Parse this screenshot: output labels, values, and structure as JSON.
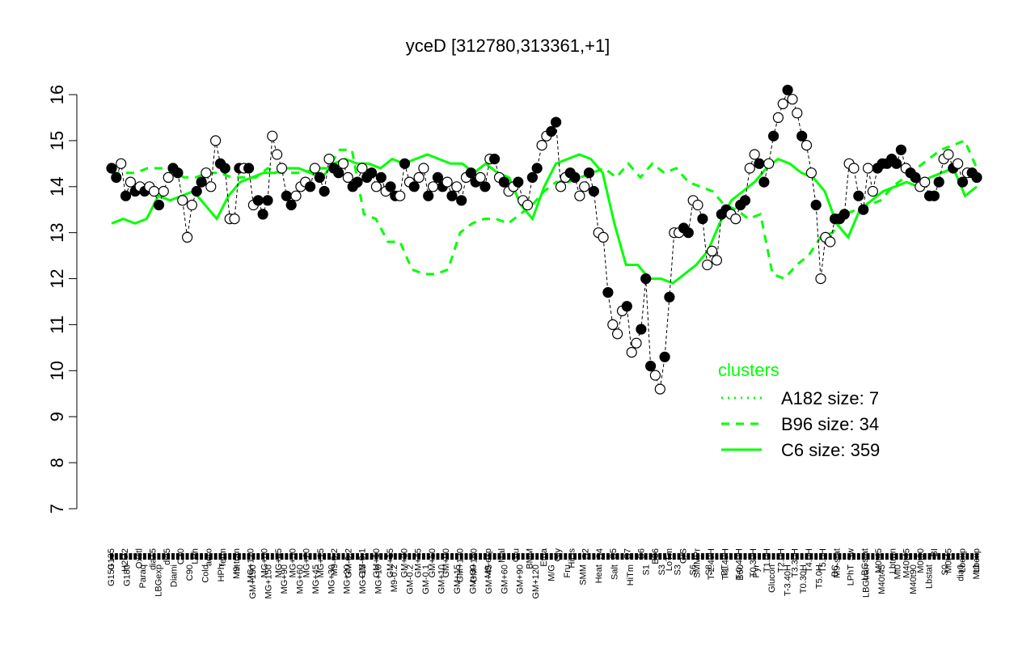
{
  "chart_data": {
    "type": "line",
    "title": "yceD [312780,313361,+1]",
    "xlabel": "",
    "ylabel": "",
    "ylim": [
      7,
      16
    ],
    "yticks": [
      7,
      8,
      9,
      10,
      11,
      12,
      13,
      14,
      15,
      16
    ],
    "xtick_labels_top": [
      "G135",
      "H2O2",
      "Oxctl",
      "dia15",
      "dia5",
      "C30",
      "LPh",
      "aero",
      "ferm",
      "M9-tran",
      "MG+120",
      "MG+60",
      "MG+45",
      "MG+30",
      "MG+20",
      "MG+15",
      "M9-0.2",
      "GM-0.2",
      "GM-0.1",
      "GM+10",
      "GM+15",
      "GM+30",
      "GM+45",
      "GM+60",
      "GM+90",
      "GM+120",
      "GM+150",
      "M9-exp",
      "Mal",
      "Glu",
      "BMM",
      "Etha",
      "Gly",
      "HiOs",
      "S2",
      "S4",
      "S5",
      "S7",
      "S6",
      "B36",
      "LoTm",
      "G/S",
      "SMMPr",
      "T-2.40H",
      "T-1.40H",
      "T-0.40H",
      "T0.30H",
      "T1.0H",
      "T2.0H",
      "T3.30H",
      "T4.0H",
      "T5.0H",
      "M9-stat",
      "Sw",
      "LBGstat",
      "M0t45",
      "Lbtran",
      "M40t45",
      "M0t90",
      "BI",
      "M0t45",
      "Lbexp",
      "Lbexp"
    ],
    "xtick_labels_bottom": [
      "G150",
      "G180",
      "Paraq",
      "LBGexp",
      "Diami",
      "C90",
      "Cold",
      "HPh",
      "nit",
      "GM+150",
      "MG+150",
      "MG+90",
      "MG+60",
      "MG+45",
      "MG+30",
      "MG+20",
      "MG+15",
      "MG+10",
      "M9-0.2",
      "GM-0.2",
      "GM-0.1",
      "GM+10",
      "GM+15",
      "GM+30",
      "GM+45",
      "GM+60",
      "GM+90",
      "GM+120",
      "M/G",
      "Fru",
      "SMM",
      "Heat",
      "Salt",
      "HiTm",
      "S1",
      "S3",
      "S3",
      "S6",
      "S8",
      "BT",
      "B60",
      "Pyr",
      "Glucon",
      "T-3.40H",
      "T0.30H",
      "T5.0H",
      "BC",
      "LPhT",
      "LBGtran",
      "M40t45",
      "Mt0",
      "M40t90",
      "Lbstat",
      "S0",
      "dia0",
      "Mt0"
    ],
    "points": [
      {
        "x": 1,
        "y": 14.4,
        "c": "f"
      },
      {
        "x": 2,
        "y": 14.2,
        "c": "f"
      },
      {
        "x": 3,
        "y": 14.5,
        "c": "o"
      },
      {
        "x": 4,
        "y": 13.8,
        "c": "f"
      },
      {
        "x": 5,
        "y": 14.1,
        "c": "o"
      },
      {
        "x": 6,
        "y": 13.9,
        "c": "f"
      },
      {
        "x": 7,
        "y": 14.0,
        "c": "o"
      },
      {
        "x": 8,
        "y": 13.9,
        "c": "f"
      },
      {
        "x": 9,
        "y": 14.0,
        "c": "o"
      },
      {
        "x": 10,
        "y": 13.9,
        "c": "o"
      },
      {
        "x": 11,
        "y": 13.6,
        "c": "f"
      },
      {
        "x": 12,
        "y": 13.9,
        "c": "o"
      },
      {
        "x": 13,
        "y": 14.2,
        "c": "o"
      },
      {
        "x": 14,
        "y": 14.4,
        "c": "f"
      },
      {
        "x": 15,
        "y": 14.3,
        "c": "f"
      },
      {
        "x": 16,
        "y": 13.7,
        "c": "o"
      },
      {
        "x": 17,
        "y": 12.9,
        "c": "o"
      },
      {
        "x": 18,
        "y": 13.6,
        "c": "o"
      },
      {
        "x": 19,
        "y": 13.9,
        "c": "f"
      },
      {
        "x": 20,
        "y": 14.1,
        "c": "f"
      },
      {
        "x": 21,
        "y": 14.3,
        "c": "o"
      },
      {
        "x": 22,
        "y": 14.0,
        "c": "o"
      },
      {
        "x": 23,
        "y": 15.0,
        "c": "o"
      },
      {
        "x": 24,
        "y": 14.5,
        "c": "f"
      },
      {
        "x": 25,
        "y": 14.4,
        "c": "f"
      },
      {
        "x": 26,
        "y": 13.3,
        "c": "o"
      },
      {
        "x": 27,
        "y": 13.3,
        "c": "o"
      },
      {
        "x": 28,
        "y": 14.4,
        "c": "f"
      },
      {
        "x": 29,
        "y": 14.4,
        "c": "o"
      },
      {
        "x": 30,
        "y": 14.4,
        "c": "f"
      },
      {
        "x": 31,
        "y": 13.6,
        "c": "o"
      },
      {
        "x": 32,
        "y": 13.7,
        "c": "f"
      },
      {
        "x": 33,
        "y": 13.4,
        "c": "f"
      },
      {
        "x": 34,
        "y": 13.7,
        "c": "f"
      },
      {
        "x": 35,
        "y": 15.1,
        "c": "o"
      },
      {
        "x": 36,
        "y": 14.7,
        "c": "o"
      },
      {
        "x": 37,
        "y": 14.4,
        "c": "o"
      },
      {
        "x": 38,
        "y": 13.8,
        "c": "f"
      },
      {
        "x": 39,
        "y": 13.6,
        "c": "f"
      },
      {
        "x": 40,
        "y": 13.8,
        "c": "o"
      },
      {
        "x": 41,
        "y": 14.0,
        "c": "o"
      },
      {
        "x": 42,
        "y": 14.1,
        "c": "o"
      },
      {
        "x": 43,
        "y": 14.0,
        "c": "f"
      },
      {
        "x": 44,
        "y": 14.4,
        "c": "o"
      },
      {
        "x": 45,
        "y": 14.2,
        "c": "f"
      },
      {
        "x": 46,
        "y": 13.9,
        "c": "f"
      },
      {
        "x": 47,
        "y": 14.6,
        "c": "o"
      },
      {
        "x": 48,
        "y": 14.4,
        "c": "f"
      },
      {
        "x": 49,
        "y": 14.3,
        "c": "f"
      },
      {
        "x": 50,
        "y": 14.5,
        "c": "o"
      },
      {
        "x": 51,
        "y": 14.2,
        "c": "o"
      },
      {
        "x": 52,
        "y": 14.0,
        "c": "f"
      },
      {
        "x": 53,
        "y": 14.1,
        "c": "f"
      },
      {
        "x": 54,
        "y": 14.4,
        "c": "o"
      },
      {
        "x": 55,
        "y": 14.2,
        "c": "f"
      },
      {
        "x": 56,
        "y": 14.3,
        "c": "f"
      },
      {
        "x": 57,
        "y": 14.0,
        "c": "o"
      },
      {
        "x": 58,
        "y": 14.2,
        "c": "f"
      },
      {
        "x": 59,
        "y": 13.9,
        "c": "o"
      },
      {
        "x": 60,
        "y": 14.0,
        "c": "f"
      },
      {
        "x": 61,
        "y": 13.8,
        "c": "f"
      },
      {
        "x": 62,
        "y": 13.8,
        "c": "o"
      },
      {
        "x": 63,
        "y": 14.5,
        "c": "f"
      },
      {
        "x": 64,
        "y": 14.1,
        "c": "o"
      },
      {
        "x": 65,
        "y": 14.0,
        "c": "f"
      },
      {
        "x": 66,
        "y": 14.2,
        "c": "o"
      },
      {
        "x": 67,
        "y": 14.4,
        "c": "o"
      },
      {
        "x": 68,
        "y": 13.8,
        "c": "f"
      },
      {
        "x": 69,
        "y": 14.0,
        "c": "o"
      },
      {
        "x": 70,
        "y": 14.2,
        "c": "f"
      },
      {
        "x": 71,
        "y": 14.0,
        "c": "f"
      },
      {
        "x": 72,
        "y": 14.1,
        "c": "o"
      },
      {
        "x": 73,
        "y": 13.8,
        "c": "f"
      },
      {
        "x": 74,
        "y": 14.0,
        "c": "o"
      },
      {
        "x": 75,
        "y": 13.7,
        "c": "f"
      },
      {
        "x": 76,
        "y": 14.2,
        "c": "o"
      },
      {
        "x": 77,
        "y": 14.3,
        "c": "f"
      },
      {
        "x": 78,
        "y": 14.1,
        "c": "f"
      },
      {
        "x": 79,
        "y": 14.2,
        "c": "o"
      },
      {
        "x": 80,
        "y": 14.0,
        "c": "f"
      },
      {
        "x": 81,
        "y": 14.6,
        "c": "o"
      },
      {
        "x": 82,
        "y": 14.6,
        "c": "f"
      },
      {
        "x": 83,
        "y": 14.2,
        "c": "o"
      },
      {
        "x": 84,
        "y": 14.1,
        "c": "f"
      },
      {
        "x": 85,
        "y": 13.9,
        "c": "o"
      },
      {
        "x": 86,
        "y": 14.0,
        "c": "o"
      },
      {
        "x": 87,
        "y": 14.1,
        "c": "f"
      },
      {
        "x": 88,
        "y": 13.7,
        "c": "o"
      },
      {
        "x": 89,
        "y": 13.6,
        "c": "o"
      },
      {
        "x": 90,
        "y": 14.2,
        "c": "f"
      },
      {
        "x": 91,
        "y": 14.4,
        "c": "f"
      },
      {
        "x": 92,
        "y": 14.9,
        "c": "o"
      },
      {
        "x": 93,
        "y": 15.1,
        "c": "o"
      },
      {
        "x": 94,
        "y": 15.2,
        "c": "f"
      },
      {
        "x": 95,
        "y": 15.4,
        "c": "f"
      },
      {
        "x": 96,
        "y": 14.0,
        "c": "o"
      },
      {
        "x": 97,
        "y": 14.2,
        "c": "o"
      },
      {
        "x": 98,
        "y": 14.3,
        "c": "f"
      },
      {
        "x": 99,
        "y": 14.2,
        "c": "f"
      },
      {
        "x": 100,
        "y": 13.8,
        "c": "o"
      },
      {
        "x": 101,
        "y": 14.0,
        "c": "o"
      },
      {
        "x": 102,
        "y": 14.3,
        "c": "f"
      },
      {
        "x": 103,
        "y": 13.9,
        "c": "f"
      },
      {
        "x": 104,
        "y": 13.0,
        "c": "o"
      },
      {
        "x": 105,
        "y": 12.9,
        "c": "o"
      },
      {
        "x": 106,
        "y": 11.7,
        "c": "f"
      },
      {
        "x": 107,
        "y": 11.0,
        "c": "o"
      },
      {
        "x": 108,
        "y": 10.8,
        "c": "o"
      },
      {
        "x": 109,
        "y": 11.3,
        "c": "o"
      },
      {
        "x": 110,
        "y": 11.4,
        "c": "f"
      },
      {
        "x": 111,
        "y": 10.4,
        "c": "o"
      },
      {
        "x": 112,
        "y": 10.6,
        "c": "o"
      },
      {
        "x": 113,
        "y": 10.9,
        "c": "f"
      },
      {
        "x": 114,
        "y": 12.0,
        "c": "f"
      },
      {
        "x": 115,
        "y": 10.1,
        "c": "f"
      },
      {
        "x": 116,
        "y": 9.9,
        "c": "o"
      },
      {
        "x": 117,
        "y": 9.6,
        "c": "o"
      },
      {
        "x": 118,
        "y": 10.3,
        "c": "f"
      },
      {
        "x": 119,
        "y": 11.6,
        "c": "f"
      },
      {
        "x": 120,
        "y": 13.0,
        "c": "o"
      },
      {
        "x": 121,
        "y": 13.0,
        "c": "o"
      },
      {
        "x": 122,
        "y": 13.1,
        "c": "f"
      },
      {
        "x": 123,
        "y": 13.0,
        "c": "f"
      },
      {
        "x": 124,
        "y": 13.7,
        "c": "o"
      },
      {
        "x": 125,
        "y": 13.6,
        "c": "o"
      },
      {
        "x": 126,
        "y": 13.3,
        "c": "f"
      },
      {
        "x": 127,
        "y": 12.3,
        "c": "o"
      },
      {
        "x": 128,
        "y": 12.6,
        "c": "o"
      },
      {
        "x": 129,
        "y": 12.4,
        "c": "o"
      },
      {
        "x": 130,
        "y": 13.4,
        "c": "f"
      },
      {
        "x": 131,
        "y": 13.5,
        "c": "f"
      },
      {
        "x": 132,
        "y": 13.4,
        "c": "o"
      },
      {
        "x": 133,
        "y": 13.3,
        "c": "o"
      },
      {
        "x": 134,
        "y": 13.6,
        "c": "f"
      },
      {
        "x": 135,
        "y": 13.7,
        "c": "f"
      },
      {
        "x": 136,
        "y": 14.4,
        "c": "o"
      },
      {
        "x": 137,
        "y": 14.7,
        "c": "o"
      },
      {
        "x": 138,
        "y": 14.5,
        "c": "f"
      },
      {
        "x": 139,
        "y": 14.1,
        "c": "f"
      },
      {
        "x": 140,
        "y": 14.5,
        "c": "o"
      },
      {
        "x": 141,
        "y": 15.1,
        "c": "f"
      },
      {
        "x": 142,
        "y": 15.5,
        "c": "o"
      },
      {
        "x": 143,
        "y": 15.8,
        "c": "o"
      },
      {
        "x": 144,
        "y": 16.1,
        "c": "f"
      },
      {
        "x": 145,
        "y": 15.9,
        "c": "o"
      },
      {
        "x": 146,
        "y": 15.6,
        "c": "o"
      },
      {
        "x": 147,
        "y": 15.1,
        "c": "f"
      },
      {
        "x": 148,
        "y": 14.9,
        "c": "o"
      },
      {
        "x": 149,
        "y": 14.3,
        "c": "o"
      },
      {
        "x": 150,
        "y": 13.6,
        "c": "f"
      },
      {
        "x": 151,
        "y": 12.0,
        "c": "o"
      },
      {
        "x": 152,
        "y": 12.9,
        "c": "o"
      },
      {
        "x": 153,
        "y": 12.8,
        "c": "o"
      },
      {
        "x": 154,
        "y": 13.3,
        "c": "f"
      },
      {
        "x": 155,
        "y": 13.3,
        "c": "f"
      },
      {
        "x": 156,
        "y": 13.4,
        "c": "f"
      },
      {
        "x": 157,
        "y": 14.5,
        "c": "o"
      },
      {
        "x": 158,
        "y": 14.4,
        "c": "o"
      },
      {
        "x": 159,
        "y": 13.8,
        "c": "f"
      },
      {
        "x": 160,
        "y": 13.5,
        "c": "f"
      },
      {
        "x": 161,
        "y": 14.4,
        "c": "o"
      },
      {
        "x": 162,
        "y": 13.9,
        "c": "o"
      },
      {
        "x": 163,
        "y": 14.4,
        "c": "f"
      },
      {
        "x": 164,
        "y": 14.5,
        "c": "f"
      },
      {
        "x": 165,
        "y": 14.5,
        "c": "f"
      },
      {
        "x": 166,
        "y": 14.6,
        "c": "f"
      },
      {
        "x": 167,
        "y": 14.5,
        "c": "f"
      },
      {
        "x": 168,
        "y": 14.8,
        "c": "f"
      },
      {
        "x": 169,
        "y": 14.4,
        "c": "o"
      },
      {
        "x": 170,
        "y": 14.3,
        "c": "f"
      },
      {
        "x": 171,
        "y": 14.2,
        "c": "f"
      },
      {
        "x": 172,
        "y": 14.0,
        "c": "o"
      },
      {
        "x": 173,
        "y": 14.1,
        "c": "o"
      },
      {
        "x": 174,
        "y": 13.8,
        "c": "f"
      },
      {
        "x": 175,
        "y": 13.8,
        "c": "f"
      },
      {
        "x": 176,
        "y": 14.1,
        "c": "f"
      },
      {
        "x": 177,
        "y": 14.6,
        "c": "o"
      },
      {
        "x": 178,
        "y": 14.7,
        "c": "o"
      },
      {
        "x": 179,
        "y": 14.4,
        "c": "f"
      },
      {
        "x": 180,
        "y": 14.5,
        "c": "o"
      },
      {
        "x": 181,
        "y": 14.1,
        "c": "f"
      },
      {
        "x": 182,
        "y": 14.3,
        "c": "o"
      },
      {
        "x": 183,
        "y": 14.3,
        "c": "f"
      },
      {
        "x": 184,
        "y": 14.2,
        "c": "f"
      }
    ],
    "series": [
      {
        "name": "A182 size: 7",
        "style": "dotted",
        "values": []
      },
      {
        "name": "B96 size: 34",
        "style": "dashed",
        "values": [
          14.3,
          14.3,
          14.3,
          14.4,
          14.4,
          14.4,
          14.2,
          14.2,
          14.3,
          14.3,
          14.2,
          14.2,
          14.2,
          14.4,
          14.3,
          14.3,
          14.3,
          14.4,
          14.4,
          14.8,
          14.8,
          13.4,
          13.3,
          12.8,
          12.8,
          12.2,
          12.1,
          12.1,
          12.2,
          13.0,
          13.2,
          13.3,
          13.3,
          13.2,
          13.4,
          13.6,
          13.9,
          14.1,
          14.1,
          14.2,
          14.3,
          14.4,
          14.2,
          14.5,
          14.2,
          14.5,
          14.3,
          14.4,
          14.1,
          14.0,
          13.9,
          13.6,
          13.5,
          13.3,
          13.4,
          12.1,
          12.0,
          12.3,
          12.5,
          12.9,
          13.0,
          13.4,
          13.5,
          13.6,
          13.7,
          14.0,
          14.2,
          14.4,
          14.6,
          14.8,
          14.9,
          15.0,
          14.4
        ]
      },
      {
        "name": "C6 size: 359",
        "style": "solid",
        "values": [
          13.2,
          13.3,
          13.2,
          13.3,
          13.8,
          13.7,
          13.8,
          13.9,
          13.6,
          13.3,
          13.8,
          14.1,
          14.2,
          14.3,
          14.3,
          14.4,
          14.4,
          14.3,
          14.2,
          14.5,
          14.6,
          14.5,
          14.5,
          14.4,
          14.6,
          14.5,
          14.6,
          14.7,
          14.6,
          14.5,
          14.5,
          14.3,
          14.5,
          14.3,
          14.2,
          13.6,
          13.3,
          14.0,
          14.5,
          14.6,
          14.7,
          14.6,
          14.3,
          13.2,
          12.3,
          12.3,
          12.0,
          12.0,
          11.9,
          12.1,
          12.3,
          12.6,
          13.2,
          13.7,
          13.9,
          14.1,
          14.4,
          14.6,
          14.5,
          14.3,
          14.2,
          13.9,
          13.2,
          12.9,
          13.5,
          13.7,
          13.9,
          14.0,
          14.1,
          14.0,
          14.2,
          14.3,
          14.4,
          13.8,
          14.0
        ]
      }
    ],
    "legend": {
      "title": "clusters",
      "position": "bottom-right",
      "entries": [
        "A182 size: 7",
        "B96 size: 34",
        "C6 size: 359"
      ]
    },
    "colors": {
      "clusters": "#00ff00",
      "points": "#000000"
    },
    "grid": false
  }
}
